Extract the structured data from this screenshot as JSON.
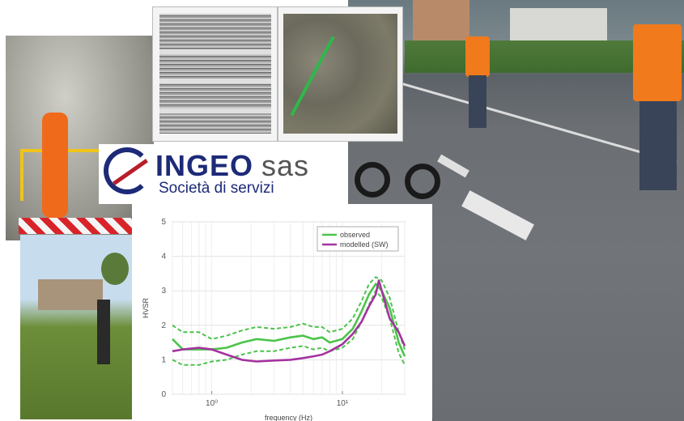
{
  "logo": {
    "name": "INGEO",
    "suffix": "sas",
    "tagline": "Società di servizi"
  },
  "chart_data": {
    "type": "line",
    "xlabel": "frequency (Hz)",
    "ylabel": "HVSR",
    "xscale": "log",
    "xlim": [
      0.5,
      30
    ],
    "ylim": [
      0,
      5
    ],
    "yticks": [
      "0",
      "1",
      "2",
      "3",
      "4",
      "5"
    ],
    "xticks": [
      {
        "value": 1,
        "label": "10⁰"
      },
      {
        "value": 10,
        "label": "10¹"
      }
    ],
    "grid": true,
    "legend_position": "top-right",
    "colors": {
      "observed": "#4cc34a",
      "modelled": "#a532a0"
    },
    "series": [
      {
        "name": "observed",
        "style": "solid",
        "x": [
          0.5,
          0.6,
          0.8,
          1.0,
          1.3,
          1.7,
          2.2,
          3,
          4,
          5,
          6,
          7,
          8,
          10,
          12,
          14,
          16,
          18,
          20,
          23,
          27,
          30
        ],
        "y": [
          1.6,
          1.3,
          1.3,
          1.3,
          1.35,
          1.5,
          1.6,
          1.55,
          1.65,
          1.7,
          1.6,
          1.65,
          1.5,
          1.6,
          1.9,
          2.4,
          2.9,
          3.2,
          3.0,
          2.5,
          1.5,
          1.1
        ]
      },
      {
        "name": "",
        "style": "dashed",
        "x": [
          0.5,
          0.6,
          0.8,
          1.0,
          1.3,
          1.7,
          2.2,
          3,
          4,
          5,
          6,
          7,
          8,
          10,
          12,
          14,
          16,
          18,
          20,
          23,
          27,
          30
        ],
        "y": [
          2.0,
          1.8,
          1.8,
          1.6,
          1.7,
          1.85,
          1.95,
          1.9,
          1.95,
          2.05,
          1.95,
          1.95,
          1.8,
          1.9,
          2.2,
          2.7,
          3.2,
          3.4,
          3.3,
          2.8,
          1.8,
          1.3
        ]
      },
      {
        "name": "",
        "style": "dashed",
        "x": [
          0.5,
          0.6,
          0.8,
          1.0,
          1.3,
          1.7,
          2.2,
          3,
          4,
          5,
          6,
          7,
          8,
          10,
          12,
          14,
          16,
          18,
          20,
          23,
          27,
          30
        ],
        "y": [
          1.0,
          0.85,
          0.85,
          0.95,
          1.0,
          1.15,
          1.25,
          1.25,
          1.35,
          1.4,
          1.3,
          1.35,
          1.25,
          1.35,
          1.6,
          2.1,
          2.6,
          3.0,
          2.8,
          2.2,
          1.2,
          0.85
        ]
      },
      {
        "name": "modelled (SW)",
        "style": "solid",
        "x": [
          0.5,
          0.6,
          0.8,
          1.0,
          1.3,
          1.7,
          2.2,
          3,
          4,
          5,
          6,
          7,
          8,
          10,
          12,
          14,
          16,
          18,
          19,
          20,
          23,
          27,
          30
        ],
        "y": [
          1.25,
          1.3,
          1.35,
          1.3,
          1.15,
          1.0,
          0.95,
          0.98,
          1.0,
          1.05,
          1.1,
          1.15,
          1.25,
          1.45,
          1.75,
          2.1,
          2.55,
          2.9,
          3.3,
          3.0,
          2.2,
          1.8,
          1.4
        ]
      }
    ],
    "legend": [
      "observed",
      "modelled (SW)"
    ]
  }
}
